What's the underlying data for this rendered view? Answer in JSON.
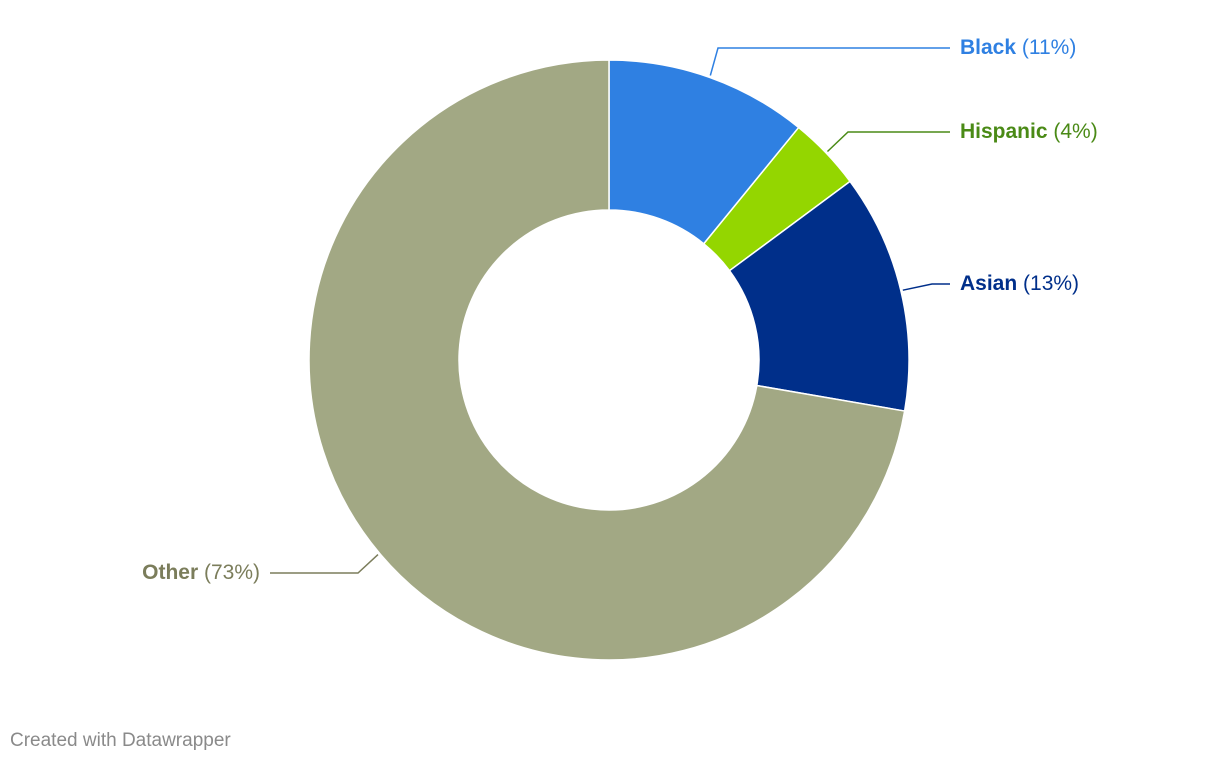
{
  "chart_data": {
    "type": "pie",
    "style": "donut",
    "slices": [
      {
        "name": "Black",
        "value": 11,
        "label": "(11%)",
        "color": "#2f80e2",
        "label_color": "#2f80e2"
      },
      {
        "name": "Hispanic",
        "value": 4,
        "label": "(4%)",
        "color": "#94d600",
        "label_color": "#4a8a16"
      },
      {
        "name": "Asian",
        "value": 13,
        "label": "(13%)",
        "color": "#002f8a",
        "label_color": "#002f8a"
      },
      {
        "name": "Other",
        "value": 73,
        "label": "(73%)",
        "color": "#a2a884",
        "label_color": "#7b7d5b"
      }
    ],
    "legend": "none",
    "labels_placement": "outside with leader lines"
  },
  "footer": {
    "credit": "Created with Datawrapper"
  }
}
